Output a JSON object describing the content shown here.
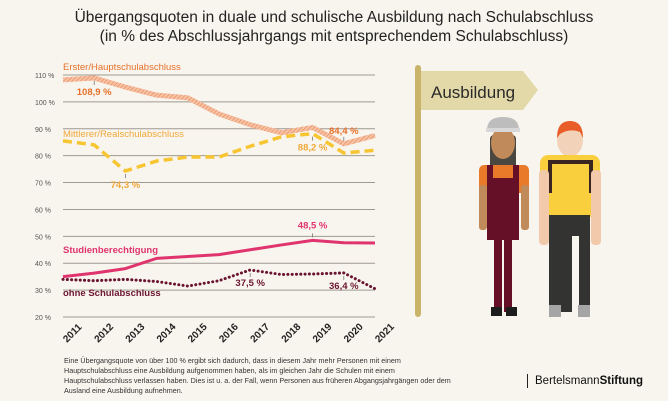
{
  "title": "Übergangsquoten in duale und schulische Ausbildung nach Schulabschluss",
  "subtitle": "(in % des Abschlussjahrgangs mit entsprechendem Schulabschluss)",
  "sign_label": "Ausbildung",
  "footnote": "Eine Übergangsquote von über 100 % ergibt sich dadurch, dass in diesem Jahr mehr Personen mit einem Hauptschulabschluss eine Ausbildung aufgenommen haben, als im gleichen Jahr die Schulen mit einem Hauptschulabschluss verlassen haben. Dies ist u. a. der Fall, wenn Personen aus früheren Abgangsjahrgängen oder dem Ausland eine Ausbildung aufnehmen.",
  "logo": {
    "part1": "Bertelsmann",
    "part2": "Stiftung"
  },
  "chart_data": {
    "type": "line",
    "x": [
      2011,
      2012,
      2013,
      2014,
      2015,
      2016,
      2017,
      2018,
      2019,
      2020,
      2021
    ],
    "ylim": [
      20,
      110
    ],
    "yticks": [
      "20 %",
      "30 %",
      "40 %",
      "50 %",
      "60 %",
      "70 %",
      "80 %",
      "90 %",
      "100 %",
      "110 %"
    ],
    "grid": true,
    "series": [
      {
        "name": "Erster/Hauptschulabschluss",
        "color": "#ef9a6f",
        "label_color": "#e8702a",
        "style": "hatched",
        "values": [
          108.2,
          108.9,
          105.5,
          102.5,
          101.5,
          95.5,
          91.5,
          88.5,
          90.5,
          84.4,
          87.5
        ],
        "annotations": [
          {
            "year": 2012,
            "text": "108,9 %"
          },
          {
            "year": 2020,
            "text": "84,4 %"
          }
        ]
      },
      {
        "name": "Mittlerer/Realschulabschluss",
        "color": "#f7c531",
        "label_color": "#f0a83a",
        "style": "dashed",
        "values": [
          85.5,
          84,
          74.3,
          78,
          79.5,
          79.5,
          83.5,
          87,
          88.2,
          81,
          82
        ],
        "annotations": [
          {
            "year": 2013,
            "text": "74,3 %"
          },
          {
            "year": 2019,
            "text": "88,2 %"
          }
        ]
      },
      {
        "name": "Studienberechtigung",
        "color": "#e0346f",
        "label_color": "#e0346f",
        "style": "solid",
        "values": [
          35,
          36.3,
          38,
          41.8,
          42.5,
          43.2,
          45,
          46.8,
          48.5,
          47.6,
          47.5
        ],
        "annotations": [
          {
            "year": 2019,
            "text": "48,5 %"
          }
        ]
      },
      {
        "name": "ohne Schulabschluss",
        "color": "#6b1430",
        "label_color": "#6b1430",
        "style": "dotted",
        "values": [
          34,
          33.5,
          34,
          33.2,
          31.5,
          33.5,
          37.5,
          35.8,
          36,
          36.4,
          30.5
        ],
        "annotations": [
          {
            "year": 2017,
            "text": "37,5 %"
          },
          {
            "year": 2020,
            "text": "36,4 %"
          }
        ]
      }
    ]
  }
}
